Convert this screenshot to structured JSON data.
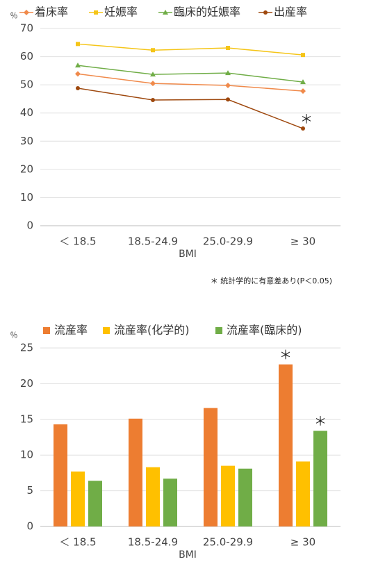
{
  "chart_data": [
    {
      "type": "line",
      "y_label": "％",
      "x_label": "BMI",
      "categories": [
        "＜ 18.5",
        "18.5-24.9",
        "25.0-29.9",
        "≥ 30"
      ],
      "series": [
        {
          "name": "着床率",
          "color": "#f08a4b",
          "marker": "diamond",
          "values": [
            53.9,
            50.5,
            49.8,
            47.8
          ]
        },
        {
          "name": "妊娠率",
          "color": "#f5c518",
          "marker": "square",
          "values": [
            64.5,
            62.3,
            63.1,
            60.6
          ]
        },
        {
          "name": "臨床的妊娠率",
          "color": "#70ad47",
          "marker": "triangle",
          "values": [
            56.9,
            53.7,
            54.2,
            51.0
          ]
        },
        {
          "name": "出産率",
          "color": "#9e480e",
          "marker": "circle",
          "values": [
            48.8,
            44.6,
            44.8,
            34.5
          ]
        }
      ],
      "ylim": [
        0,
        70
      ],
      "yticks": [
        0,
        10,
        20,
        30,
        40,
        50,
        60,
        70
      ],
      "grid": true,
      "annotations": [
        {
          "text": "＊",
          "series": 3,
          "index": 3
        }
      ],
      "note": "＊ 統計学的に有意差あり(P＜0.05)"
    },
    {
      "type": "bar",
      "y_label": "％",
      "x_label": "BMI",
      "categories": [
        "＜ 18.5",
        "18.5-24.9",
        "25.0-29.9",
        "≥ 30"
      ],
      "series": [
        {
          "name": "流産率",
          "color": "#ed7d31",
          "values": [
            14.3,
            15.1,
            16.6,
            22.7
          ]
        },
        {
          "name": "流産率(化学的)",
          "color": "#ffc000",
          "values": [
            7.7,
            8.3,
            8.5,
            9.1
          ]
        },
        {
          "name": "流産率(臨床的)",
          "color": "#70ad47",
          "values": [
            6.4,
            6.7,
            8.1,
            13.4
          ]
        }
      ],
      "ylim": [
        0,
        25
      ],
      "yticks": [
        0,
        5,
        10,
        15,
        20,
        25
      ],
      "grid": true,
      "annotations": [
        {
          "text": "＊",
          "series": 0,
          "index": 3
        },
        {
          "text": "＊",
          "series": 2,
          "index": 3
        }
      ]
    }
  ]
}
